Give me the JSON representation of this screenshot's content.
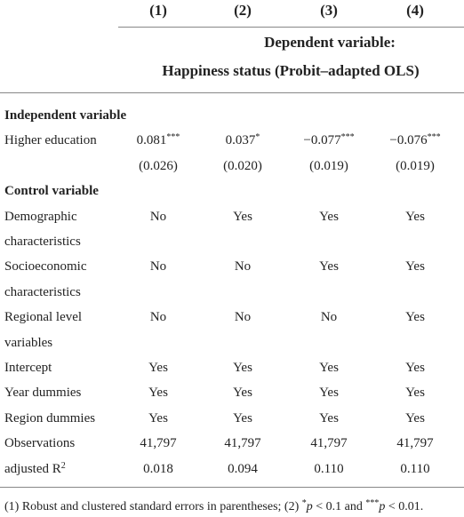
{
  "header": {
    "columns": [
      "(1)",
      "(2)",
      "(3)",
      "(4)"
    ],
    "dependent": [
      "Dependent variable:",
      "Happiness status (Probit–adapted OLS)"
    ]
  },
  "sections": [
    {
      "title": "Independent variable",
      "rows": [
        {
          "label": [
            "Higher education"
          ],
          "cells": [
            {
              "text": "0.081",
              "sup": "***"
            },
            {
              "text": "0.037",
              "sup": "*"
            },
            {
              "text": "−0.077",
              "sup": "***"
            },
            {
              "text": "−0.076",
              "sup": "***"
            }
          ]
        },
        {
          "label": [],
          "cells": [
            "(0.026)",
            "(0.020)",
            "(0.019)",
            "(0.019)"
          ]
        }
      ]
    },
    {
      "title": "Control variable",
      "rows": [
        {
          "label": [
            "Demographic",
            "characteristics"
          ],
          "cells": [
            "No",
            "Yes",
            "Yes",
            "Yes"
          ]
        },
        {
          "label": [
            "Socioeconomic",
            "characteristics"
          ],
          "cells": [
            "No",
            "No",
            "Yes",
            "Yes"
          ]
        },
        {
          "label": [
            "Regional level",
            "variables"
          ],
          "cells": [
            "No",
            "No",
            "No",
            "Yes"
          ]
        },
        {
          "label": [
            "Intercept"
          ],
          "cells": [
            "Yes",
            "Yes",
            "Yes",
            "Yes"
          ]
        },
        {
          "label": [
            "Year dummies"
          ],
          "cells": [
            "Yes",
            "Yes",
            "Yes",
            "Yes"
          ]
        },
        {
          "label": [
            "Region dummies"
          ],
          "cells": [
            "Yes",
            "Yes",
            "Yes",
            "Yes"
          ]
        },
        {
          "label": [
            "Observations"
          ],
          "cells": [
            "41,797",
            "41,797",
            "41,797",
            "41,797"
          ]
        },
        {
          "label": [
            {
              "text": "adjusted R",
              "sup": "2"
            }
          ],
          "cells": [
            "0.018",
            "0.094",
            "0.110",
            "0.110"
          ]
        }
      ]
    }
  ],
  "footnote": [
    "(1) Robust and clustered standard errors in parentheses; (2) ",
    "*",
    "p",
    " < 0.1 and ",
    "***",
    "p",
    " < 0.01."
  ]
}
